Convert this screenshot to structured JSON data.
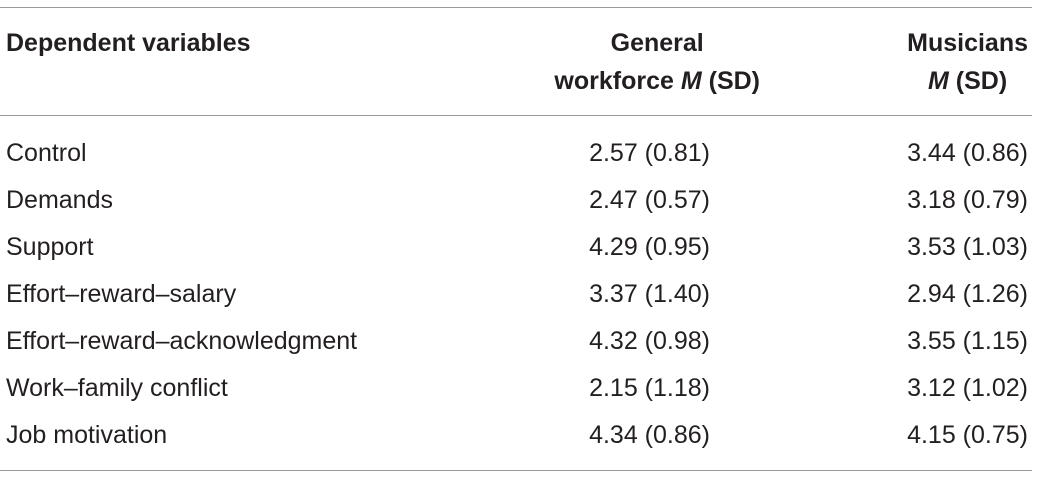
{
  "table": {
    "headers": {
      "col1": "Dependent variables",
      "col2_line1": "General",
      "col2_line2_prefix": "workforce ",
      "col2_line2_ital": "M",
      "col2_line2_suffix": " (SD)",
      "col3_line1": "Musicians",
      "col3_line2_ital": "M",
      "col3_line2_suffix": " (SD)"
    },
    "rows": [
      {
        "variable": "Control",
        "general": "2.57 (0.81)",
        "musicians": "3.44 (0.86)"
      },
      {
        "variable": "Demands",
        "general": "2.47 (0.57)",
        "musicians": "3.18 (0.79)"
      },
      {
        "variable": "Support",
        "general": "4.29 (0.95)",
        "musicians": "3.53 (1.03)"
      },
      {
        "variable": "Effort–reward–salary",
        "general": "3.37 (1.40)",
        "musicians": "2.94 (1.26)"
      },
      {
        "variable": "Effort–reward–acknowledgment",
        "general": "4.32 (0.98)",
        "musicians": "3.55 (1.15)"
      },
      {
        "variable": "Work–family conflict",
        "general": "2.15 (1.18)",
        "musicians": "3.12 (1.02)"
      },
      {
        "variable": "Job motivation",
        "general": "4.34 (0.86)",
        "musicians": "4.15 (0.75)"
      }
    ]
  }
}
